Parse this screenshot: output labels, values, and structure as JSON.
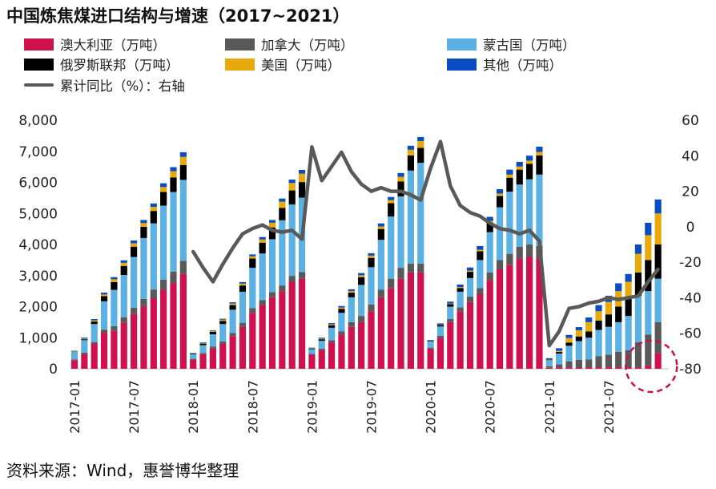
{
  "title": "中国炼焦煤进口结构与增速（2017~2021）",
  "source": "资料来源：Wind，惠誉博华整理",
  "colors": {
    "australia": "#D01150",
    "canada": "#595959",
    "mongolia": "#5BB0E4",
    "russia": "#000000",
    "usa": "#E8A90C",
    "other": "#0A4CC2",
    "growth_line": "#595959",
    "highlight_circle": "#C0144C"
  },
  "legend": {
    "australia": "澳大利亚（万吨）",
    "canada": "加拿大（万吨）",
    "mongolia": "蒙古国（万吨）",
    "russia": "俄罗斯联邦（万吨）",
    "usa": "美国（万吨）",
    "other": "其他（万吨）",
    "growth": "累计同比（%）：右轴"
  },
  "chart_data": {
    "type": "bar",
    "stacked": true,
    "x_tick_labels": [
      "2017-01",
      "2017-07",
      "2018-01",
      "2018-07",
      "2019-01",
      "2019-07",
      "2020-01",
      "2020-07",
      "2021-01",
      "2021-07"
    ],
    "left_axis": {
      "min": 0,
      "max": 8000,
      "ticks": [
        "0",
        "1,000",
        "2,000",
        "3,000",
        "4,000",
        "5,000",
        "6,000",
        "7,000",
        "8,000"
      ]
    },
    "right_axis": {
      "min": -80,
      "max": 60,
      "ticks": [
        "-80",
        "-60",
        "-40",
        "-20",
        "0",
        "20",
        "40",
        "60"
      ]
    },
    "years": [
      {
        "year": 2017,
        "months": [
          "2017-01",
          "2017-02",
          "2017-03",
          "2017-04",
          "2017-05",
          "2017-06",
          "2017-07",
          "2017-08",
          "2017-09",
          "2017-10",
          "2017-11",
          "2017-12"
        ],
        "australia": [
          280,
          480,
          800,
          1160,
          1220,
          1490,
          1760,
          2000,
          2270,
          2540,
          2760,
          3050
        ],
        "canada": [
          20,
          40,
          60,
          100,
          150,
          170,
          200,
          250,
          280,
          330,
          370,
          420
        ],
        "mongolia": [
          250,
          400,
          580,
          910,
          1170,
          1360,
          1640,
          1960,
          2130,
          2380,
          2560,
          2610
        ],
        "russia": [
          10,
          30,
          80,
          170,
          250,
          290,
          330,
          360,
          400,
          440,
          470,
          480
        ],
        "usa": [
          15,
          20,
          40,
          50,
          90,
          100,
          110,
          120,
          130,
          160,
          200,
          260
        ],
        "other": [
          10,
          30,
          40,
          60,
          70,
          80,
          90,
          100,
          110,
          120,
          130,
          150
        ]
      },
      {
        "year": 2018,
        "months": [
          "2018-01",
          "2018-02",
          "2018-03",
          "2018-04",
          "2018-05",
          "2018-06",
          "2018-07",
          "2018-08",
          "2018-09",
          "2018-10",
          "2018-11",
          "2018-12"
        ],
        "australia": [
          300,
          470,
          650,
          800,
          1050,
          1350,
          1800,
          2050,
          2300,
          2500,
          2800,
          2900
        ],
        "canada": [
          20,
          40,
          60,
          80,
          100,
          130,
          150,
          160,
          170,
          180,
          190,
          210
        ],
        "mongolia": [
          150,
          250,
          400,
          560,
          750,
          1000,
          1300,
          1500,
          1700,
          2100,
          2300,
          2400
        ],
        "russia": [
          20,
          50,
          80,
          100,
          150,
          200,
          300,
          350,
          380,
          400,
          450,
          500
        ],
        "usa": [
          10,
          20,
          30,
          40,
          50,
          60,
          70,
          100,
          150,
          200,
          240,
          270
        ],
        "other": [
          10,
          20,
          20,
          30,
          40,
          50,
          60,
          80,
          90,
          100,
          110,
          120
        ],
        "growth": [
          -14,
          -23,
          -31,
          -21,
          -12,
          -4,
          -1,
          1,
          -2,
          -3,
          -2,
          -7
        ]
      },
      {
        "year": 2019,
        "months": [
          "2019-01",
          "2019-02",
          "2019-03",
          "2019-04",
          "2019-05",
          "2019-06",
          "2019-07",
          "2019-08",
          "2019-09",
          "2019-10",
          "2019-11",
          "2019-12"
        ],
        "australia": [
          450,
          600,
          850,
          1100,
          1350,
          1500,
          1850,
          2300,
          2600,
          2900,
          3100,
          3100
        ],
        "canada": [
          30,
          50,
          70,
          100,
          150,
          200,
          220,
          250,
          300,
          350,
          280,
          280
        ],
        "mongolia": [
          150,
          250,
          400,
          600,
          800,
          1000,
          1200,
          1600,
          2000,
          2300,
          3000,
          3250
        ],
        "russia": [
          20,
          50,
          80,
          130,
          150,
          250,
          300,
          350,
          430,
          480,
          490,
          480
        ],
        "usa": [
          10,
          20,
          30,
          40,
          50,
          60,
          70,
          80,
          100,
          150,
          180,
          220
        ],
        "other": [
          20,
          30,
          40,
          50,
          60,
          70,
          80,
          100,
          100,
          120,
          130,
          130
        ],
        "growth": [
          45,
          26,
          34,
          42,
          31,
          24,
          20,
          22,
          20,
          20,
          18,
          15
        ]
      },
      {
        "year": 2020,
        "months": [
          "2020-01",
          "2020-02",
          "2020-03",
          "2020-04",
          "2020-05",
          "2020-06",
          "2020-07",
          "2020-08",
          "2020-09",
          "2020-10",
          "2020-11",
          "2020-12"
        ],
        "australia": [
          650,
          1000,
          1500,
          1850,
          2150,
          2400,
          2850,
          3200,
          3350,
          3550,
          3600,
          3550
        ],
        "canada": [
          30,
          60,
          100,
          130,
          170,
          200,
          250,
          300,
          350,
          380,
          400,
          400
        ],
        "mongolia": [
          200,
          300,
          400,
          500,
          600,
          900,
          1300,
          1700,
          2000,
          2000,
          2100,
          2300
        ],
        "russia": [
          20,
          50,
          80,
          120,
          200,
          280,
          300,
          360,
          450,
          480,
          500,
          620
        ],
        "usa": [
          5,
          10,
          20,
          30,
          40,
          50,
          60,
          80,
          100,
          100,
          100,
          110
        ],
        "other": [
          20,
          40,
          60,
          80,
          100,
          120,
          130,
          140,
          160,
          150,
          160,
          170
        ],
        "growth": [
          33,
          48,
          23,
          12,
          8,
          6,
          2,
          -1,
          -2,
          -4,
          -2,
          -8
        ]
      },
      {
        "year": 2021,
        "months": [
          "2021-01",
          "2021-02",
          "2021-03",
          "2021-04",
          "2021-05",
          "2021-06",
          "2021-07",
          "2021-08",
          "2021-09",
          "2021-10",
          "2021-11",
          "2021-12"
        ],
        "australia": [
          30,
          40,
          40,
          40,
          50,
          50,
          50,
          50,
          50,
          50,
          100,
          500
        ],
        "canada": [
          50,
          100,
          200,
          250,
          250,
          350,
          400,
          500,
          550,
          800,
          1000,
          1000
        ],
        "mongolia": [
          200,
          350,
          500,
          600,
          700,
          850,
          900,
          950,
          1100,
          1500,
          1400,
          1400
        ],
        "russia": [
          20,
          50,
          100,
          150,
          200,
          300,
          400,
          500,
          600,
          750,
          1000,
          1100
        ],
        "usa": [
          10,
          40,
          150,
          200,
          300,
          300,
          400,
          500,
          500,
          600,
          800,
          1000
        ],
        "other": [
          30,
          80,
          100,
          100,
          150,
          200,
          200,
          250,
          250,
          300,
          400,
          450
        ],
        "growth": [
          -67,
          -59,
          -46,
          -45,
          -43,
          -42,
          -40,
          -41,
          -40,
          -39,
          -31,
          -24
        ]
      }
    ],
    "annotation": "dashed circle highlighting the latest months"
  }
}
